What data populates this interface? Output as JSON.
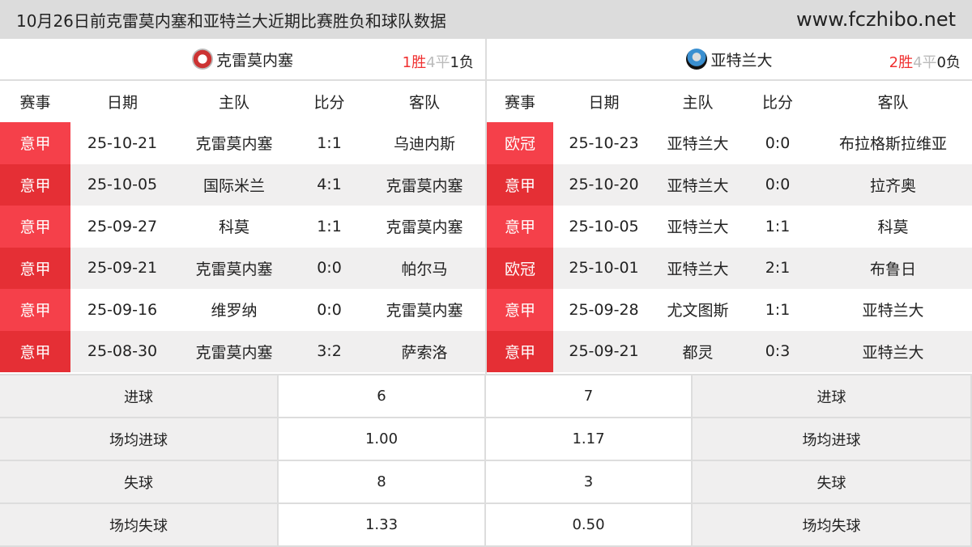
{
  "header": {
    "title": "10月26日前克雷莫内塞和亚特兰大近期比赛胜负和球队数据",
    "site": "www.fczhibo.net"
  },
  "columns": [
    "赛事",
    "日期",
    "主队",
    "比分",
    "客队"
  ],
  "left": {
    "team": "克雷莫内塞",
    "logo_icon": "cremonese-crest",
    "record": {
      "win": "1胜",
      "draw": "4平",
      "loss": "1负"
    },
    "matches": [
      [
        "意甲",
        "25-10-21",
        "克雷莫内塞",
        "1:1",
        "乌迪内斯"
      ],
      [
        "意甲",
        "25-10-05",
        "国际米兰",
        "4:1",
        "克雷莫内塞"
      ],
      [
        "意甲",
        "25-09-27",
        "科莫",
        "1:1",
        "克雷莫内塞"
      ],
      [
        "意甲",
        "25-09-21",
        "克雷莫内塞",
        "0:0",
        "帕尔马"
      ],
      [
        "意甲",
        "25-09-16",
        "维罗纳",
        "0:0",
        "克雷莫内塞"
      ],
      [
        "意甲",
        "25-08-30",
        "克雷莫内塞",
        "3:2",
        "萨索洛"
      ]
    ]
  },
  "right": {
    "team": "亚特兰大",
    "logo_icon": "atalanta-crest",
    "record": {
      "win": "2胜",
      "draw": "4平",
      "loss": "0负"
    },
    "matches": [
      [
        "欧冠",
        "25-10-23",
        "亚特兰大",
        "0:0",
        "布拉格斯拉维亚"
      ],
      [
        "意甲",
        "25-10-20",
        "亚特兰大",
        "0:0",
        "拉齐奥"
      ],
      [
        "意甲",
        "25-10-05",
        "亚特兰大",
        "1:1",
        "科莫"
      ],
      [
        "欧冠",
        "25-10-01",
        "亚特兰大",
        "2:1",
        "布鲁日"
      ],
      [
        "意甲",
        "25-09-28",
        "尤文图斯",
        "1:1",
        "亚特兰大"
      ],
      [
        "意甲",
        "25-09-21",
        "都灵",
        "0:3",
        "亚特兰大"
      ]
    ]
  },
  "stats": [
    {
      "label": "进球",
      "left": "6",
      "right": "7"
    },
    {
      "label": "场均进球",
      "left": "1.00",
      "right": "1.17"
    },
    {
      "label": "失球",
      "left": "8",
      "right": "3"
    },
    {
      "label": "场均失球",
      "left": "1.33",
      "right": "0.50"
    }
  ],
  "colors": {
    "badge": "#f5404a",
    "badge_alt": "#e52f35",
    "win": "#f03030",
    "draw": "#bbbbbb"
  }
}
